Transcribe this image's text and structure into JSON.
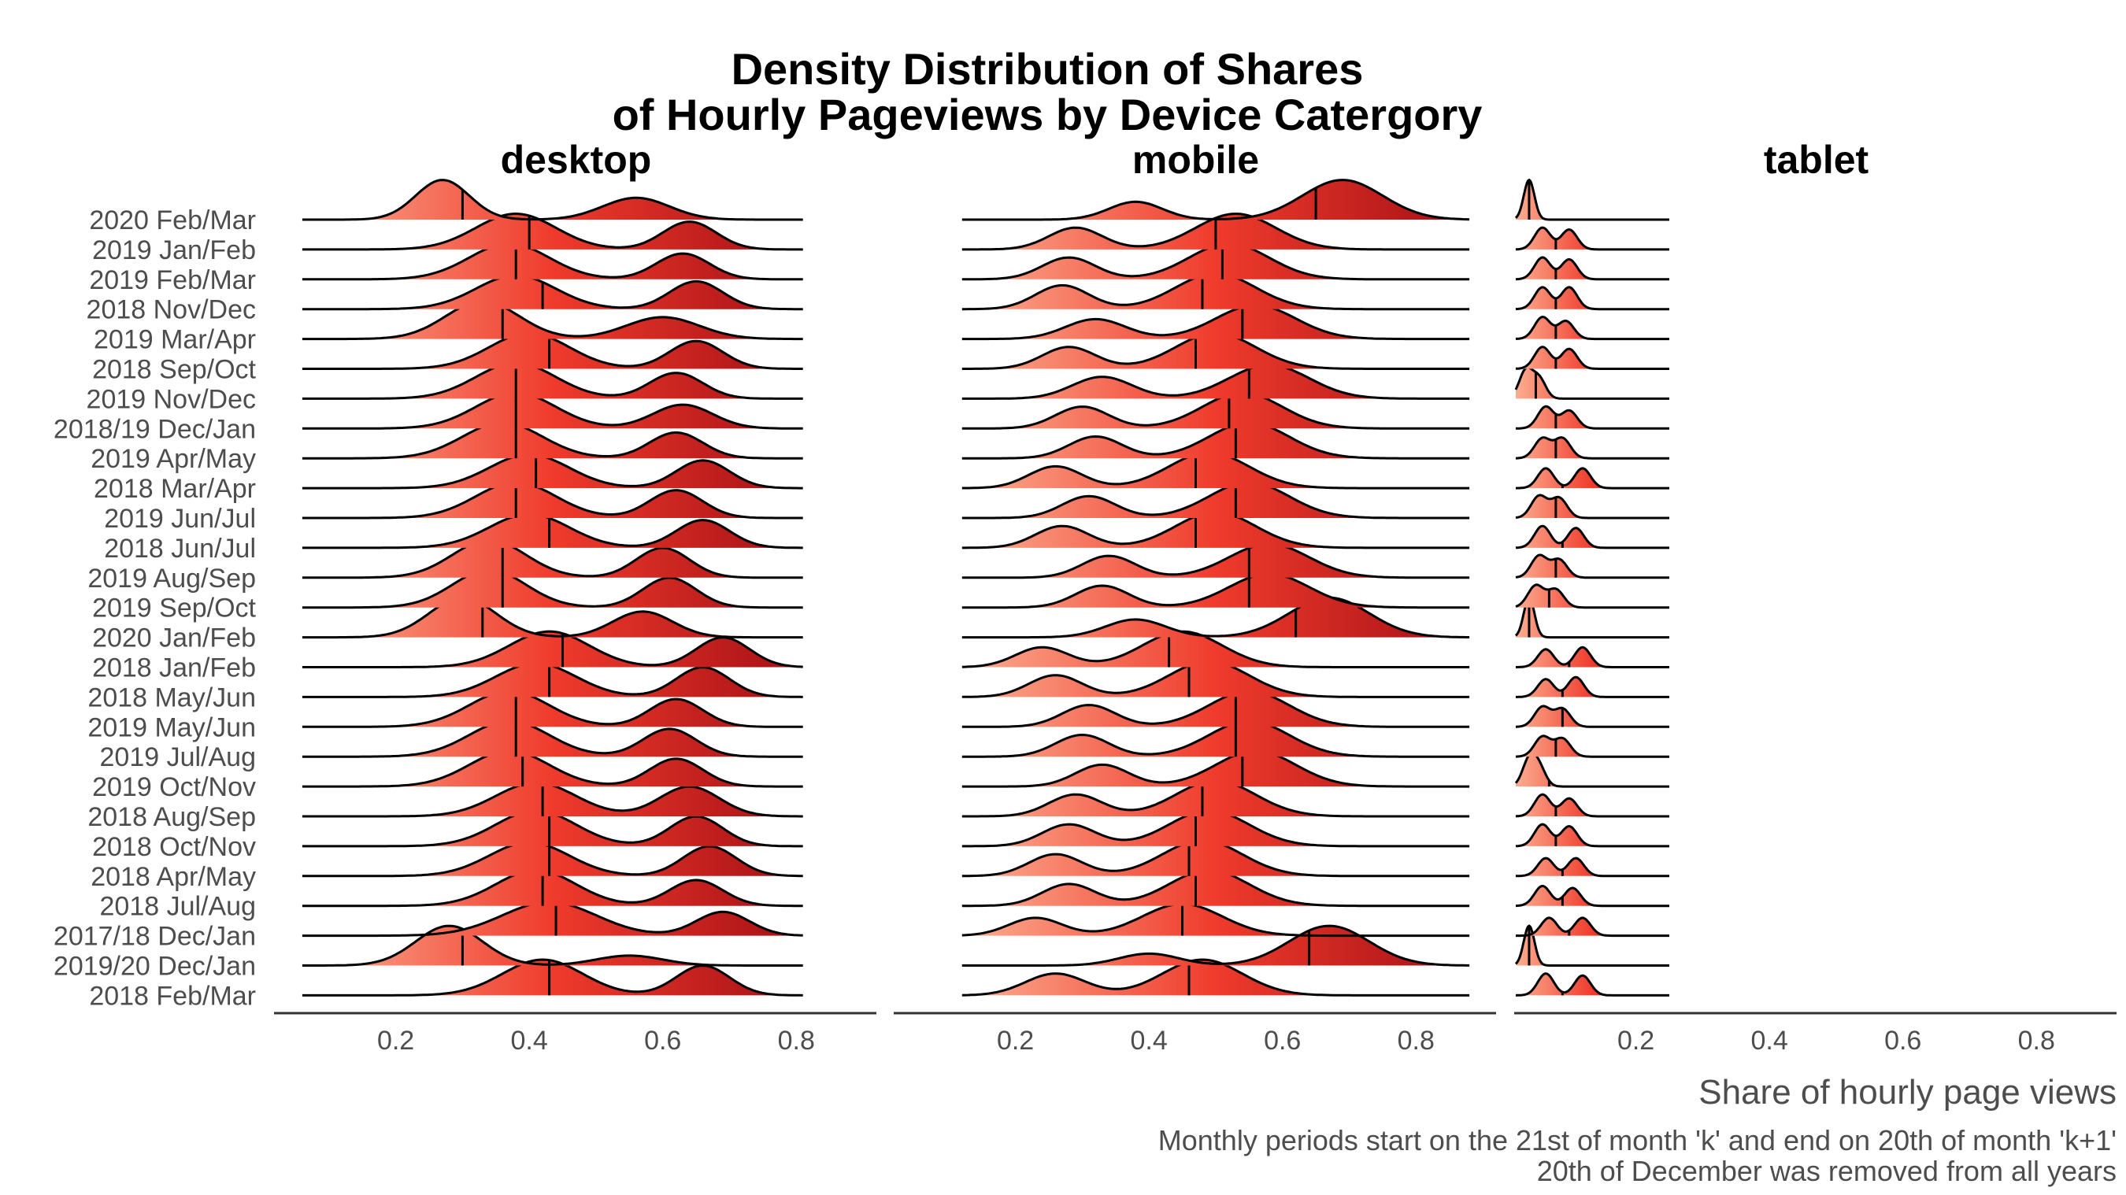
{
  "chart_data": {
    "type": "ridgeline",
    "title_lines": [
      "Density Distribution of Shares",
      "of Hourly Pageviews by Device Catergory"
    ],
    "xlabel": "Share of hourly page views",
    "caption_lines": [
      "Monthly periods start on the 21st of month 'k' and end on 20th of month 'k+1'",
      "20th of December was removed from all years"
    ],
    "x_ticks": [
      "0.2",
      "0.4",
      "0.6",
      "0.8"
    ],
    "xlim": [
      0.02,
      0.92
    ],
    "fill_gradient": [
      "#fcae91",
      "#ef3b2c",
      "#a50f15"
    ],
    "periods": [
      "2020 Feb/Mar",
      "2019 Jan/Feb",
      "2019 Feb/Mar",
      "2018 Nov/Dec",
      "2019 Mar/Apr",
      "2018 Sep/Oct",
      "2019 Nov/Dec",
      "2018/19 Dec/Jan",
      "2019 Apr/May",
      "2018 Mar/Apr",
      "2019 Jun/Jul",
      "2018 Jun/Jul",
      "2019 Aug/Sep",
      "2019 Sep/Oct",
      "2020 Jan/Feb",
      "2018 Jan/Feb",
      "2018 May/Jun",
      "2019 May/Jun",
      "2019 Jul/Aug",
      "2019 Oct/Nov",
      "2018 Aug/Sep",
      "2018 Oct/Nov",
      "2018 Apr/May",
      "2018 Jul/Aug",
      "2017/18 Dec/Jan",
      "2019/20 Dec/Jan",
      "2018 Feb/Mar"
    ],
    "panels": [
      {
        "name": "desktop",
        "range": [
          0.06,
          0.81
        ],
        "medians": [
          0.3,
          0.4,
          0.38,
          0.42,
          0.36,
          0.43,
          0.38,
          0.38,
          0.38,
          0.41,
          0.38,
          0.43,
          0.36,
          0.36,
          0.33,
          0.45,
          0.43,
          0.38,
          0.38,
          0.39,
          0.42,
          0.43,
          0.43,
          0.42,
          0.44,
          0.3,
          0.43
        ],
        "peaks": [
          [
            [
              0.27,
              0.04,
              1.0
            ],
            [
              0.56,
              0.05,
              0.55
            ]
          ],
          [
            [
              0.38,
              0.06,
              0.9
            ],
            [
              0.64,
              0.04,
              0.7
            ]
          ],
          [
            [
              0.37,
              0.06,
              0.9
            ],
            [
              0.63,
              0.04,
              0.65
            ]
          ],
          [
            [
              0.38,
              0.06,
              0.85
            ],
            [
              0.65,
              0.04,
              0.7
            ]
          ],
          [
            [
              0.33,
              0.055,
              0.95
            ],
            [
              0.6,
              0.055,
              0.55
            ]
          ],
          [
            [
              0.4,
              0.06,
              0.9
            ],
            [
              0.65,
              0.04,
              0.7
            ]
          ],
          [
            [
              0.38,
              0.06,
              0.9
            ],
            [
              0.62,
              0.04,
              0.65
            ]
          ],
          [
            [
              0.38,
              0.06,
              0.9
            ],
            [
              0.63,
              0.045,
              0.6
            ]
          ],
          [
            [
              0.36,
              0.06,
              0.9
            ],
            [
              0.62,
              0.04,
              0.65
            ]
          ],
          [
            [
              0.4,
              0.06,
              0.85
            ],
            [
              0.66,
              0.04,
              0.7
            ]
          ],
          [
            [
              0.38,
              0.06,
              0.9
            ],
            [
              0.62,
              0.04,
              0.7
            ]
          ],
          [
            [
              0.4,
              0.06,
              0.85
            ],
            [
              0.66,
              0.04,
              0.7
            ]
          ],
          [
            [
              0.34,
              0.055,
              0.95
            ],
            [
              0.6,
              0.04,
              0.75
            ]
          ],
          [
            [
              0.34,
              0.055,
              0.95
            ],
            [
              0.61,
              0.04,
              0.75
            ]
          ],
          [
            [
              0.3,
              0.05,
              1.0
            ],
            [
              0.57,
              0.045,
              0.65
            ]
          ],
          [
            [
              0.43,
              0.06,
              0.9
            ],
            [
              0.69,
              0.04,
              0.75
            ]
          ],
          [
            [
              0.41,
              0.06,
              0.85
            ],
            [
              0.66,
              0.04,
              0.75
            ]
          ],
          [
            [
              0.37,
              0.06,
              0.9
            ],
            [
              0.62,
              0.04,
              0.7
            ]
          ],
          [
            [
              0.37,
              0.06,
              0.9
            ],
            [
              0.61,
              0.04,
              0.7
            ]
          ],
          [
            [
              0.37,
              0.06,
              0.9
            ],
            [
              0.62,
              0.04,
              0.7
            ]
          ],
          [
            [
              0.41,
              0.06,
              0.85
            ],
            [
              0.64,
              0.045,
              0.75
            ]
          ],
          [
            [
              0.41,
              0.06,
              0.9
            ],
            [
              0.65,
              0.04,
              0.75
            ]
          ],
          [
            [
              0.4,
              0.06,
              0.85
            ],
            [
              0.67,
              0.04,
              0.75
            ]
          ],
          [
            [
              0.41,
              0.06,
              0.9
            ],
            [
              0.65,
              0.04,
              0.65
            ]
          ],
          [
            [
              0.43,
              0.07,
              0.85
            ],
            [
              0.69,
              0.04,
              0.6
            ]
          ],
          [
            [
              0.28,
              0.05,
              1.0
            ],
            [
              0.55,
              0.05,
              0.25
            ]
          ],
          [
            [
              0.42,
              0.06,
              0.9
            ],
            [
              0.66,
              0.04,
              0.75
            ]
          ]
        ]
      },
      {
        "name": "mobile",
        "range": [
          0.12,
          0.88
        ],
        "medians": [
          0.65,
          0.5,
          0.51,
          0.48,
          0.54,
          0.47,
          0.55,
          0.52,
          0.53,
          0.47,
          0.53,
          0.47,
          0.55,
          0.55,
          0.62,
          0.43,
          0.46,
          0.53,
          0.53,
          0.54,
          0.48,
          0.47,
          0.46,
          0.47,
          0.45,
          0.64,
          0.46
        ],
        "peaks": [
          [
            [
              0.38,
              0.04,
              0.45
            ],
            [
              0.69,
              0.06,
              1.0
            ]
          ],
          [
            [
              0.29,
              0.04,
              0.55
            ],
            [
              0.53,
              0.06,
              0.9
            ]
          ],
          [
            [
              0.28,
              0.04,
              0.55
            ],
            [
              0.52,
              0.06,
              0.9
            ]
          ],
          [
            [
              0.27,
              0.04,
              0.6
            ],
            [
              0.5,
              0.06,
              0.9
            ]
          ],
          [
            [
              0.32,
              0.045,
              0.5
            ],
            [
              0.56,
              0.06,
              0.85
            ]
          ],
          [
            [
              0.28,
              0.04,
              0.55
            ],
            [
              0.5,
              0.06,
              0.9
            ]
          ],
          [
            [
              0.33,
              0.045,
              0.55
            ],
            [
              0.58,
              0.06,
              0.85
            ]
          ],
          [
            [
              0.3,
              0.04,
              0.55
            ],
            [
              0.54,
              0.06,
              0.9
            ]
          ],
          [
            [
              0.32,
              0.04,
              0.55
            ],
            [
              0.55,
              0.06,
              0.9
            ]
          ],
          [
            [
              0.26,
              0.04,
              0.55
            ],
            [
              0.49,
              0.06,
              0.9
            ]
          ],
          [
            [
              0.31,
              0.04,
              0.55
            ],
            [
              0.55,
              0.06,
              0.9
            ]
          ],
          [
            [
              0.27,
              0.04,
              0.55
            ],
            [
              0.5,
              0.06,
              0.9
            ]
          ],
          [
            [
              0.34,
              0.04,
              0.55
            ],
            [
              0.58,
              0.06,
              0.85
            ]
          ],
          [
            [
              0.33,
              0.04,
              0.55
            ],
            [
              0.58,
              0.06,
              0.85
            ]
          ],
          [
            [
              0.38,
              0.045,
              0.45
            ],
            [
              0.67,
              0.06,
              1.0
            ]
          ],
          [
            [
              0.24,
              0.04,
              0.5
            ],
            [
              0.45,
              0.06,
              0.9
            ]
          ],
          [
            [
              0.26,
              0.04,
              0.55
            ],
            [
              0.49,
              0.06,
              0.9
            ]
          ],
          [
            [
              0.31,
              0.04,
              0.55
            ],
            [
              0.55,
              0.06,
              0.9
            ]
          ],
          [
            [
              0.3,
              0.04,
              0.55
            ],
            [
              0.55,
              0.06,
              0.9
            ]
          ],
          [
            [
              0.33,
              0.04,
              0.55
            ],
            [
              0.56,
              0.06,
              0.9
            ]
          ],
          [
            [
              0.29,
              0.04,
              0.55
            ],
            [
              0.5,
              0.06,
              0.9
            ]
          ],
          [
            [
              0.28,
              0.04,
              0.55
            ],
            [
              0.49,
              0.06,
              0.9
            ]
          ],
          [
            [
              0.26,
              0.04,
              0.55
            ],
            [
              0.48,
              0.06,
              0.9
            ]
          ],
          [
            [
              0.28,
              0.04,
              0.55
            ],
            [
              0.49,
              0.06,
              0.9
            ]
          ],
          [
            [
              0.23,
              0.04,
              0.45
            ],
            [
              0.45,
              0.06,
              0.8
            ]
          ],
          [
            [
              0.4,
              0.045,
              0.3
            ],
            [
              0.67,
              0.06,
              1.0
            ]
          ],
          [
            [
              0.26,
              0.045,
              0.55
            ],
            [
              0.48,
              0.06,
              0.9
            ]
          ]
        ]
      },
      {
        "name": "tablet",
        "range": [
          0.02,
          0.25
        ],
        "medians": [
          0.04,
          0.08,
          0.08,
          0.08,
          0.08,
          0.08,
          0.05,
          0.08,
          0.08,
          0.09,
          0.08,
          0.09,
          0.08,
          0.07,
          0.04,
          0.1,
          0.09,
          0.09,
          0.08,
          0.07,
          0.08,
          0.08,
          0.09,
          0.09,
          0.1,
          0.04,
          0.09
        ],
        "peaks": [
          [
            [
              0.04,
              0.008,
              1.0
            ]
          ],
          [
            [
              0.06,
              0.012,
              0.55
            ],
            [
              0.1,
              0.012,
              0.5
            ]
          ],
          [
            [
              0.06,
              0.012,
              0.55
            ],
            [
              0.1,
              0.012,
              0.5
            ]
          ],
          [
            [
              0.06,
              0.012,
              0.55
            ],
            [
              0.1,
              0.012,
              0.55
            ]
          ],
          [
            [
              0.06,
              0.012,
              0.55
            ],
            [
              0.095,
              0.012,
              0.45
            ]
          ],
          [
            [
              0.06,
              0.012,
              0.55
            ],
            [
              0.1,
              0.012,
              0.5
            ]
          ],
          [
            [
              0.035,
              0.01,
              0.7
            ],
            [
              0.055,
              0.01,
              0.5
            ]
          ],
          [
            [
              0.065,
              0.012,
              0.55
            ],
            [
              0.1,
              0.012,
              0.45
            ]
          ],
          [
            [
              0.06,
              0.012,
              0.5
            ],
            [
              0.09,
              0.012,
              0.5
            ]
          ],
          [
            [
              0.065,
              0.012,
              0.5
            ],
            [
              0.12,
              0.012,
              0.5
            ]
          ],
          [
            [
              0.055,
              0.012,
              0.55
            ],
            [
              0.085,
              0.012,
              0.5
            ]
          ],
          [
            [
              0.06,
              0.012,
              0.55
            ],
            [
              0.11,
              0.012,
              0.5
            ]
          ],
          [
            [
              0.055,
              0.012,
              0.55
            ],
            [
              0.085,
              0.012,
              0.45
            ]
          ],
          [
            [
              0.05,
              0.012,
              0.55
            ],
            [
              0.08,
              0.012,
              0.45
            ]
          ],
          [
            [
              0.04,
              0.008,
              1.0
            ]
          ],
          [
            [
              0.065,
              0.012,
              0.45
            ],
            [
              0.12,
              0.012,
              0.5
            ]
          ],
          [
            [
              0.065,
              0.012,
              0.45
            ],
            [
              0.11,
              0.012,
              0.5
            ]
          ],
          [
            [
              0.06,
              0.012,
              0.5
            ],
            [
              0.09,
              0.012,
              0.45
            ]
          ],
          [
            [
              0.06,
              0.012,
              0.5
            ],
            [
              0.09,
              0.012,
              0.45
            ]
          ],
          [
            [
              0.04,
              0.01,
              0.65
            ],
            [
              0.055,
              0.01,
              0.45
            ]
          ],
          [
            [
              0.06,
              0.012,
              0.55
            ],
            [
              0.1,
              0.012,
              0.45
            ]
          ],
          [
            [
              0.06,
              0.012,
              0.55
            ],
            [
              0.1,
              0.012,
              0.5
            ]
          ],
          [
            [
              0.065,
              0.012,
              0.45
            ],
            [
              0.11,
              0.012,
              0.45
            ]
          ],
          [
            [
              0.06,
              0.012,
              0.5
            ],
            [
              0.105,
              0.012,
              0.45
            ]
          ],
          [
            [
              0.07,
              0.012,
              0.45
            ],
            [
              0.12,
              0.012,
              0.45
            ]
          ],
          [
            [
              0.04,
              0.008,
              1.0
            ]
          ],
          [
            [
              0.065,
              0.012,
              0.55
            ],
            [
              0.12,
              0.012,
              0.5
            ]
          ]
        ]
      }
    ]
  }
}
